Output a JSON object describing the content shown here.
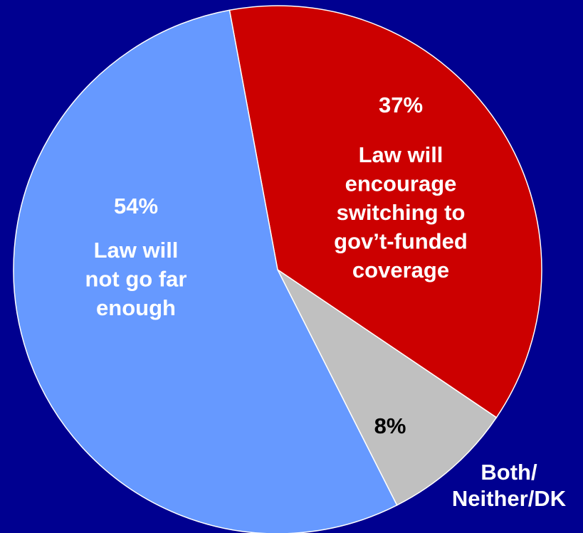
{
  "chart_data": {
    "type": "pie",
    "slices": [
      {
        "value": 37,
        "value_label": "37%",
        "label_lines": [
          "Law will",
          "encourage",
          "switching to",
          "gov’t-funded",
          "coverage"
        ],
        "color": "#cc0000",
        "text_color": "#ffffff"
      },
      {
        "value": 8,
        "value_label": "8%",
        "label_lines": [
          "Both/",
          "Neither/DK"
        ],
        "color": "#c0c0c0",
        "text_color": "#000000",
        "label_color": "#ffffff"
      },
      {
        "value": 54,
        "value_label": "54%",
        "label_lines": [
          "Law will",
          "not go far",
          "enough"
        ],
        "color": "#6699ff",
        "text_color": "#ffffff"
      }
    ],
    "background_color": "#000090",
    "outline_color": "#ffffff"
  }
}
